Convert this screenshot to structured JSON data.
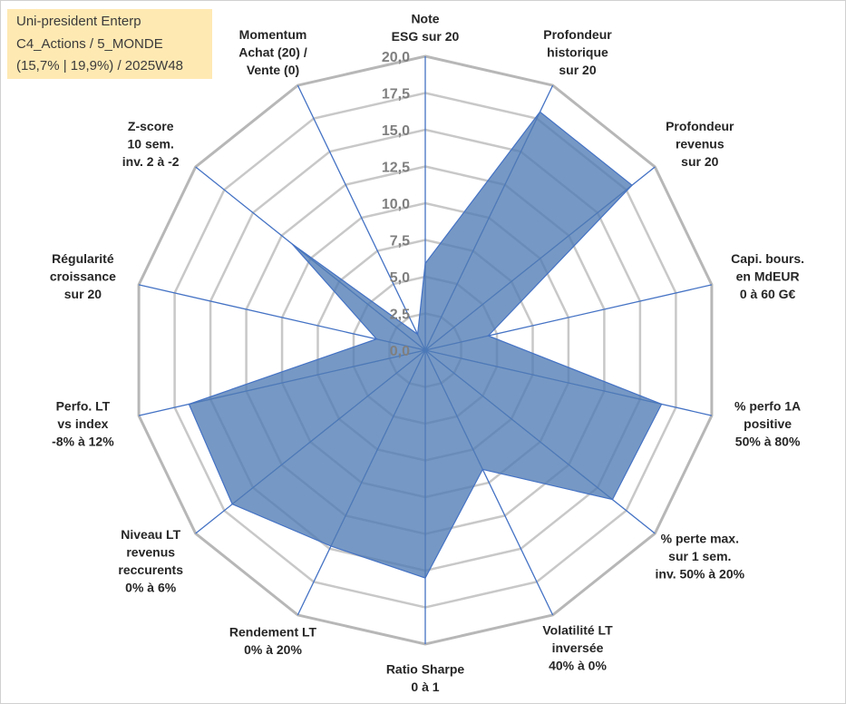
{
  "title_box": {
    "line1": "Uni-president Enterp",
    "line2": "C4_Actions / 5_MONDE",
    "line3": "(15,7% | 19,9%) / 2025W48"
  },
  "chart_data": {
    "type": "radar",
    "rlim": [
      0,
      20
    ],
    "ticks": [
      "0,0",
      "2,5",
      "5,0",
      "7,5",
      "10,0",
      "12,5",
      "15,0",
      "17,5",
      "20,0"
    ],
    "tick_values": [
      0,
      2.5,
      5,
      7.5,
      10,
      12.5,
      15,
      17.5,
      20
    ],
    "grid": true,
    "legend": "none",
    "axes": [
      {
        "label": [
          "Note",
          "ESG sur 20"
        ],
        "value": 5.9
      },
      {
        "label": [
          "Profondeur",
          "historique",
          "sur 20"
        ],
        "value": 18.0
      },
      {
        "label": [
          "Profondeur",
          "revenus",
          "sur 20"
        ],
        "value": 18.0
      },
      {
        "label": [
          "Capi. bours.",
          "en MdEUR",
          "0 à 60 G€"
        ],
        "value": 4.4
      },
      {
        "label": [
          "% perfo 1A",
          "positive",
          "50% à 80%"
        ],
        "value": 16.5
      },
      {
        "label": [
          "% perte max.",
          "sur 1 sem.",
          "inv. 50% à 20%"
        ],
        "value": 16.3
      },
      {
        "label": [
          "Volatilité LT",
          "inversée",
          "40% à 0%"
        ],
        "value": 9.0
      },
      {
        "label": [
          "Ratio Sharpe",
          "0 à 1"
        ],
        "value": 15.5
      },
      {
        "label": [
          "Rendement LT",
          "0% à 20%"
        ],
        "value": 14.8
      },
      {
        "label": [
          "Niveau LT",
          "revenus",
          "reccurents",
          "0% à 6%"
        ],
        "value": 16.8
      },
      {
        "label": [
          "Perfo. LT",
          "vs index",
          "-8% à 12%"
        ],
        "value": 16.5
      },
      {
        "label": [
          "Régularité",
          "croissance",
          "sur 20"
        ],
        "value": 3.4
      },
      {
        "label": [
          "Z-score",
          "10 sem.",
          "inv. 2 à -2"
        ],
        "value": 11.6
      },
      {
        "label": [
          "Momentum",
          "Achat (20) /",
          "Vente (0)"
        ],
        "value": 1.2
      }
    ],
    "colors": {
      "fill": "#4f7bb3",
      "fill_opacity": 0.78,
      "stroke": "#4472c4",
      "spoke": "#4472c4",
      "ring": "#c8c8c8",
      "outer_ring": "#b7b7b7"
    }
  }
}
